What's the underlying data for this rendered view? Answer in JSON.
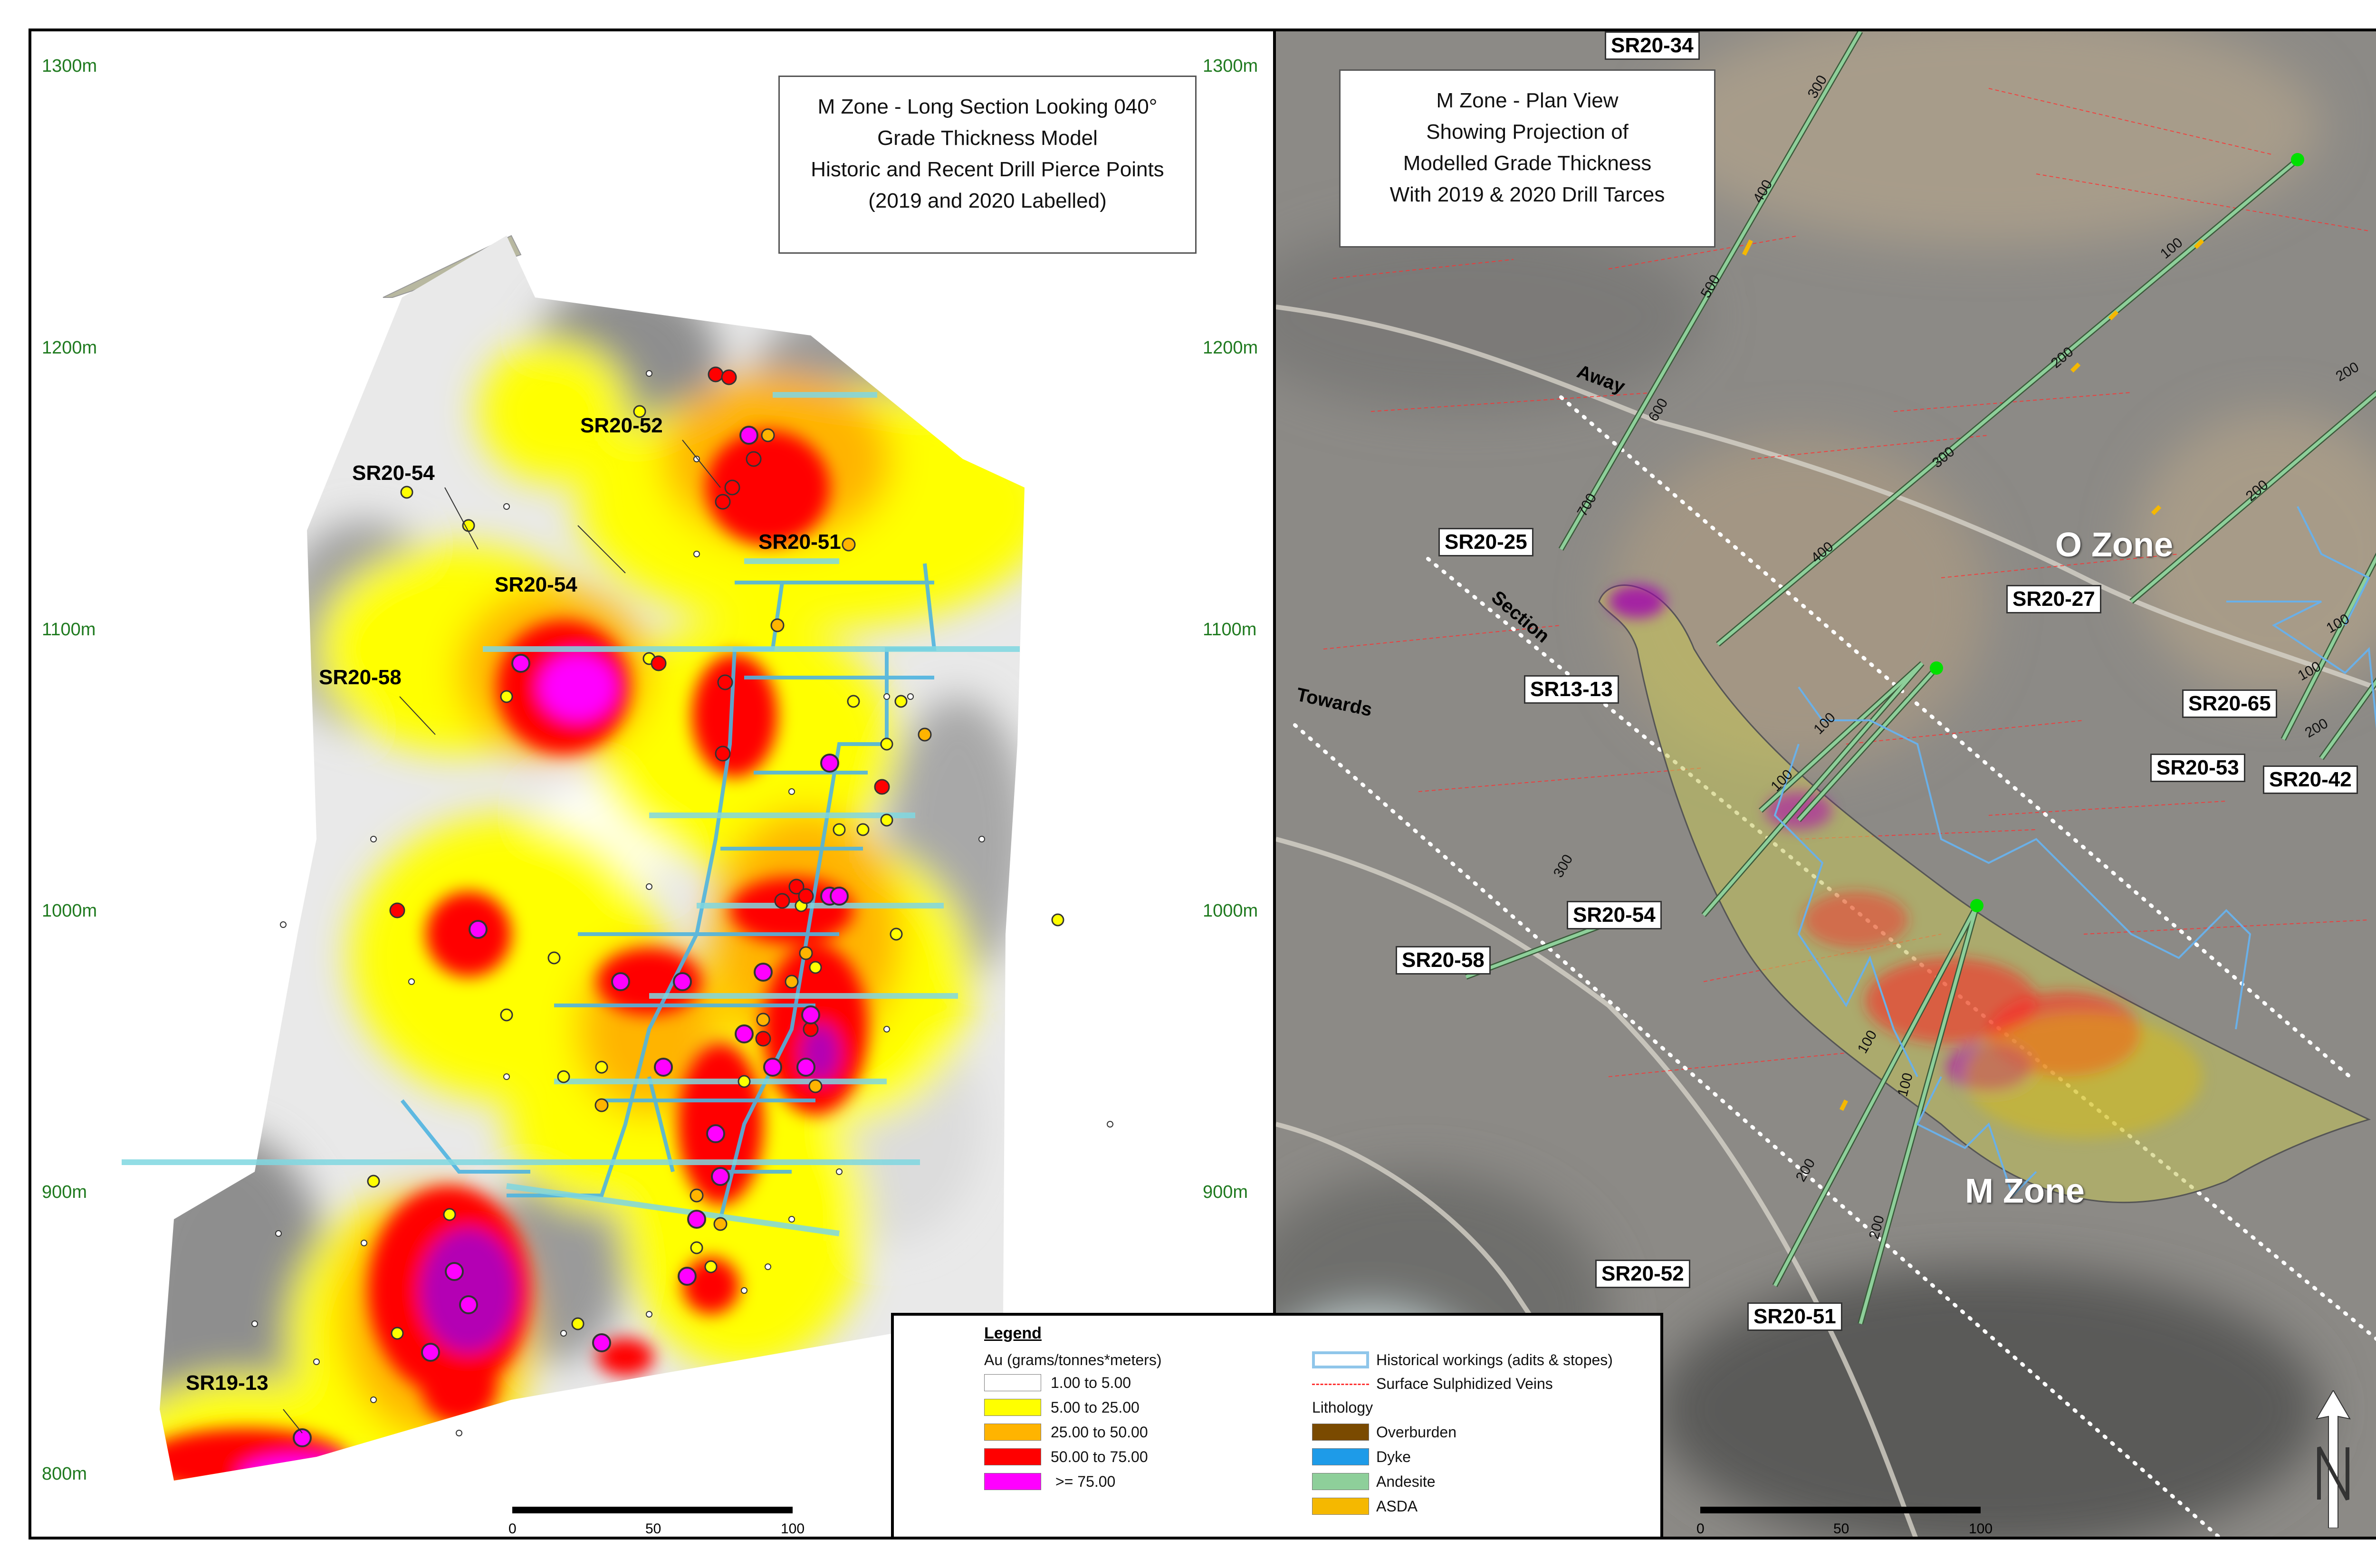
{
  "left_panel": {
    "title_lines": [
      "M Zone - Long Section Looking 040°",
      "Grade Thickness Model",
      "Historic and Recent Drill Pierce Points",
      "(2019 and 2020 Labelled)"
    ],
    "elevations": [
      "1300m",
      "1200m",
      "1100m",
      "1000m",
      "900m",
      "800m"
    ],
    "hole_labels": [
      "SR20-52",
      "SR20-54",
      "SR20-51",
      "SR20-54",
      "SR20-58",
      "SR19-13"
    ],
    "scale": [
      "0",
      "50",
      "100"
    ]
  },
  "right_panel": {
    "title_lines": [
      "M Zone - Plan View",
      "Showing Projection of",
      "Modelled Grade Thickness",
      "With 2019 & 2020 Drill Tarces"
    ],
    "hole_labels": [
      "SR20-34",
      "SR20-25",
      "SR13-13",
      "SR20-54",
      "SR20-58",
      "SR20-27",
      "SR20-65",
      "SR20-53",
      "SR20-42",
      "SR20-52",
      "SR20-51"
    ],
    "zone_labels": [
      "O Zone",
      "M Zone"
    ],
    "section_words": [
      "Away",
      "Section",
      "Towards"
    ],
    "depth_labels": [
      "300",
      "400",
      "500",
      "600",
      "700",
      "100",
      "200",
      "300",
      "400",
      "100",
      "100",
      "300",
      "100",
      "200",
      "100",
      "200",
      "100",
      "200",
      "100",
      "200",
      "200"
    ],
    "scale": [
      "0",
      "50",
      "100"
    ]
  },
  "legend": {
    "title": "Legend",
    "au_heading": "Au (grams/tonnes*meters)",
    "grades": [
      {
        "label": "1.00 to 5.00",
        "color": "#ffffff"
      },
      {
        "label": "5.00 to 25.00",
        "color": "#ffff00"
      },
      {
        "label": "25.00 to 50.00",
        "color": "#ffb400"
      },
      {
        "label": "50.00 to 75.00",
        "color": "#ff0000"
      },
      {
        "label": ">= 75.00",
        "color": "#ff00ff"
      }
    ],
    "workings": "Historical workings (adits & stopes)",
    "veins": "Surface Sulphidized Veins",
    "lithology_heading": "Lithology",
    "lithology": [
      {
        "label": "Overburden",
        "color": "#7a4a00"
      },
      {
        "label": "Dyke",
        "color": "#1e9be8"
      },
      {
        "label": "Andesite",
        "color": "#8ecf9a"
      },
      {
        "label": "ASDA",
        "color": "#f5b800"
      }
    ]
  },
  "colors": {
    "grade_white": "#ffffff",
    "grade_yellow": "#ffff00",
    "grade_orange": "#ffb400",
    "grade_red": "#ff0000",
    "grade_magenta": "#ff00ff",
    "workings": "#4fb4e0",
    "elevation_text": "#1f7a1f",
    "drill_trace": "#8ecf9a"
  }
}
